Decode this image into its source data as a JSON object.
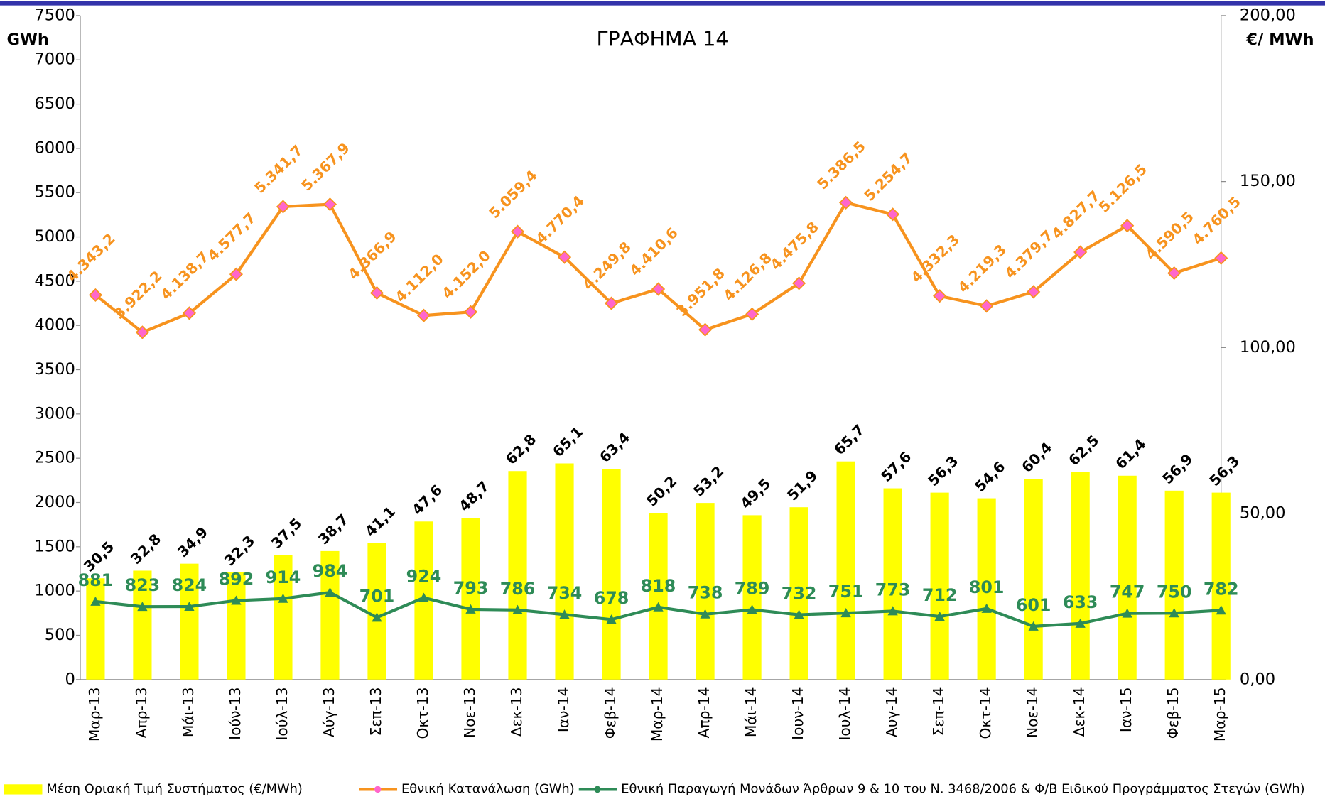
{
  "chart_data": {
    "type": "bar",
    "title": "ΓΡΑΦΗΜΑ 14",
    "y_label": "GWh",
    "y2_label": "€/ MWh",
    "categories": [
      "Μαρ-13",
      "Απρ-13",
      "Μάι-13",
      "Ιούν-13",
      "Ιούλ-13",
      "Αύγ-13",
      "Σεπ-13",
      "Οκτ-13",
      "Νοε-13",
      "Δεκ-13",
      "Ιαν-14",
      "Φεβ-14",
      "Μαρ-14",
      "Απρ-14",
      "Μάι-14",
      "Ιουν-14",
      "Ιουλ-14",
      "Αυγ-14",
      "Σεπ-14",
      "Οκτ-14",
      "Νοε-14",
      "Δεκ-14",
      "Ιαν-15",
      "Φεβ-15",
      "Μαρ-15"
    ],
    "ylim": [
      0,
      7500
    ],
    "yticks": [
      0,
      500,
      1000,
      1500,
      2000,
      2500,
      3000,
      3500,
      4000,
      4500,
      5000,
      5500,
      6000,
      6500,
      7000,
      7500
    ],
    "y2lim": [
      0,
      200
    ],
    "y2ticks": [
      {
        "value": 0,
        "label": "0,00"
      },
      {
        "value": 50,
        "label": "50,00"
      },
      {
        "value": 100,
        "label": "100,00"
      },
      {
        "value": 150,
        "label": "150,00"
      },
      {
        "value": 200,
        "label": "200,00"
      }
    ],
    "series": [
      {
        "name": "Μέση Οριακή Τιμή Συστήματος (€/MWh)",
        "type": "bar",
        "axis": "y2",
        "color": "#ffff00",
        "values": [
          30.5,
          32.8,
          34.9,
          32.3,
          37.5,
          38.7,
          41.1,
          47.6,
          48.7,
          62.8,
          65.1,
          63.4,
          50.2,
          53.2,
          49.5,
          51.9,
          65.7,
          57.6,
          56.3,
          54.6,
          60.4,
          62.5,
          61.4,
          56.9,
          56.3
        ],
        "value_labels": [
          "30,5",
          "32,8",
          "34,9",
          "32,3",
          "37,5",
          "38,7",
          "41,1",
          "47,6",
          "48,7",
          "62,8",
          "65,1",
          "63,4",
          "50,2",
          "53,2",
          "49,5",
          "51,9",
          "65,7",
          "57,6",
          "56,3",
          "54,6",
          "60,4",
          "62,5",
          "61,4",
          "56,9",
          "56,3"
        ]
      },
      {
        "name": "Εθνική Κατανάλωση (GWh)",
        "type": "line",
        "color": "#f7931e",
        "marker_color": "#ff66cc",
        "values": [
          4343.2,
          3922.2,
          4138.7,
          4577.7,
          5341.7,
          5367.9,
          4366.9,
          4112.0,
          4152.0,
          5059.4,
          4770.4,
          4249.8,
          4410.6,
          3951.8,
          4126.8,
          4475.8,
          5386.5,
          5254.7,
          4332.3,
          4219.3,
          4379.7,
          4827.7,
          5126.5,
          4590.5,
          4760.5
        ],
        "value_labels": [
          "4.343,2",
          "3.922,2",
          "4.138,7",
          "4.577,7",
          "5.341,7",
          "5.367,9",
          "4.366,9",
          "4.112,0",
          "4.152,0",
          "5.059,4",
          "4.770,4",
          "4.249,8",
          "4.410,6",
          "3.951,8",
          "4.126,8",
          "4.475,8",
          "5.386,5",
          "5.254,7",
          "4.332,3",
          "4.219,3",
          "4.379,7",
          "4.827,7",
          "5.126,5",
          "4.590,5",
          "4.760,5"
        ]
      },
      {
        "name": "Εθνική Παραγωγή Μονάδων Άρθρων 9 & 10 του Ν. 3468/2006 & Φ/Β Ειδικού Προγράμματος Στεγών (GWh)",
        "type": "line",
        "color": "#2e8b57",
        "marker_color": "#2e8b57",
        "values": [
          881,
          823,
          824,
          892,
          914,
          984,
          701,
          924,
          793,
          786,
          734,
          678,
          818,
          738,
          789,
          732,
          751,
          773,
          712,
          801,
          601,
          633,
          747,
          750,
          782
        ]
      }
    ]
  }
}
